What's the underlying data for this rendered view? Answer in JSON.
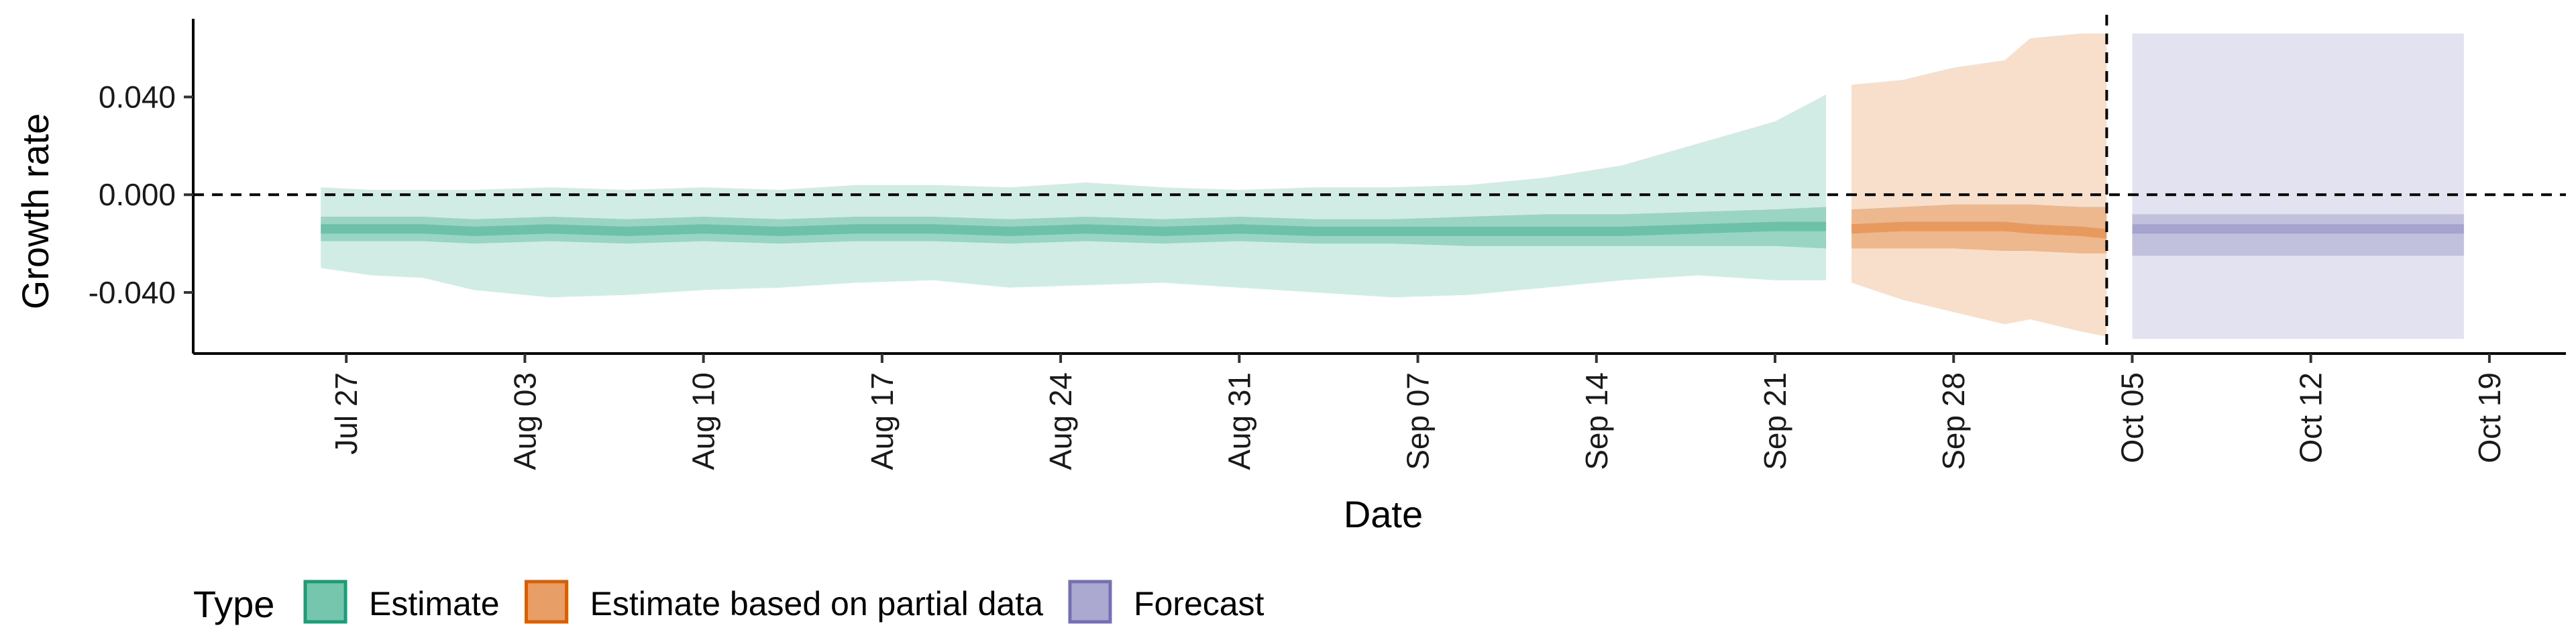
{
  "chart_data": {
    "type": "area",
    "title": "",
    "xlabel": "Date",
    "ylabel": "Growth rate",
    "x_type": "date",
    "xlim": [
      "2020-07-21",
      "2020-10-22"
    ],
    "ylim": [
      -0.065,
      0.072
    ],
    "y_ticks": [
      {
        "value": 0.04,
        "label": "0.040"
      },
      {
        "value": 0.0,
        "label": "0.000"
      },
      {
        "value": -0.04,
        "label": "-0.040"
      }
    ],
    "x_ticks": [
      {
        "date": "2020-07-27",
        "label": "Jul 27"
      },
      {
        "date": "2020-08-03",
        "label": "Aug 03"
      },
      {
        "date": "2020-08-10",
        "label": "Aug 10"
      },
      {
        "date": "2020-08-17",
        "label": "Aug 17"
      },
      {
        "date": "2020-08-24",
        "label": "Aug 24"
      },
      {
        "date": "2020-08-31",
        "label": "Aug 31"
      },
      {
        "date": "2020-09-07",
        "label": "Sep 07"
      },
      {
        "date": "2020-09-14",
        "label": "Sep 14"
      },
      {
        "date": "2020-09-21",
        "label": "Sep 21"
      },
      {
        "date": "2020-09-28",
        "label": "Sep 28"
      },
      {
        "date": "2020-10-05",
        "label": "Oct 05"
      },
      {
        "date": "2020-10-12",
        "label": "Oct 12"
      },
      {
        "date": "2020-10-19",
        "label": "Oct 19"
      }
    ],
    "reference_lines": [
      {
        "axis": "y",
        "value": 0,
        "style": "dashed"
      },
      {
        "axis": "x",
        "value": "2020-10-04",
        "style": "dashed"
      }
    ],
    "grid": false,
    "legend": {
      "title": "Type",
      "position": "bottom-left",
      "entries": [
        {
          "label": "Estimate",
          "color": "#1b9e77"
        },
        {
          "label": "Estimate based on partial data",
          "color": "#d95f02"
        },
        {
          "label": "Forecast",
          "color": "#7570b3"
        }
      ]
    },
    "series": [
      {
        "name": "Estimate",
        "color": "#1b9e77",
        "points": [
          {
            "x": "2020-07-26",
            "median": -0.014,
            "lower90": -0.03,
            "upper90": 0.003,
            "lower50": -0.019,
            "upper50": -0.009
          },
          {
            "x": "2020-07-28",
            "median": -0.014,
            "lower90": -0.033,
            "upper90": 0.002,
            "lower50": -0.019,
            "upper50": -0.009
          },
          {
            "x": "2020-07-30",
            "median": -0.014,
            "lower90": -0.034,
            "upper90": 0.002,
            "lower50": -0.019,
            "upper50": -0.009
          },
          {
            "x": "2020-08-01",
            "median": -0.015,
            "lower90": -0.039,
            "upper90": 0.002,
            "lower50": -0.02,
            "upper50": -0.01
          },
          {
            "x": "2020-08-04",
            "median": -0.014,
            "lower90": -0.042,
            "upper90": 0.003,
            "lower50": -0.019,
            "upper50": -0.009
          },
          {
            "x": "2020-08-07",
            "median": -0.015,
            "lower90": -0.041,
            "upper90": 0.002,
            "lower50": -0.02,
            "upper50": -0.01
          },
          {
            "x": "2020-08-10",
            "median": -0.014,
            "lower90": -0.039,
            "upper90": 0.003,
            "lower50": -0.019,
            "upper50": -0.009
          },
          {
            "x": "2020-08-13",
            "median": -0.015,
            "lower90": -0.038,
            "upper90": 0.002,
            "lower50": -0.02,
            "upper50": -0.01
          },
          {
            "x": "2020-08-16",
            "median": -0.014,
            "lower90": -0.036,
            "upper90": 0.004,
            "lower50": -0.019,
            "upper50": -0.009
          },
          {
            "x": "2020-08-19",
            "median": -0.014,
            "lower90": -0.035,
            "upper90": 0.004,
            "lower50": -0.019,
            "upper50": -0.009
          },
          {
            "x": "2020-08-22",
            "median": -0.015,
            "lower90": -0.038,
            "upper90": 0.003,
            "lower50": -0.02,
            "upper50": -0.01
          },
          {
            "x": "2020-08-25",
            "median": -0.014,
            "lower90": -0.037,
            "upper90": 0.005,
            "lower50": -0.019,
            "upper50": -0.009
          },
          {
            "x": "2020-08-28",
            "median": -0.015,
            "lower90": -0.036,
            "upper90": 0.003,
            "lower50": -0.02,
            "upper50": -0.01
          },
          {
            "x": "2020-08-31",
            "median": -0.014,
            "lower90": -0.038,
            "upper90": 0.002,
            "lower50": -0.019,
            "upper50": -0.009
          },
          {
            "x": "2020-09-03",
            "median": -0.015,
            "lower90": -0.04,
            "upper90": 0.003,
            "lower50": -0.02,
            "upper50": -0.01
          },
          {
            "x": "2020-09-06",
            "median": -0.015,
            "lower90": -0.042,
            "upper90": 0.003,
            "lower50": -0.02,
            "upper50": -0.01
          },
          {
            "x": "2020-09-09",
            "median": -0.015,
            "lower90": -0.041,
            "upper90": 0.004,
            "lower50": -0.021,
            "upper50": -0.009
          },
          {
            "x": "2020-09-12",
            "median": -0.015,
            "lower90": -0.038,
            "upper90": 0.007,
            "lower50": -0.021,
            "upper50": -0.008
          },
          {
            "x": "2020-09-15",
            "median": -0.015,
            "lower90": -0.035,
            "upper90": 0.012,
            "lower50": -0.021,
            "upper50": -0.008
          },
          {
            "x": "2020-09-18",
            "median": -0.014,
            "lower90": -0.033,
            "upper90": 0.021,
            "lower50": -0.021,
            "upper50": -0.007
          },
          {
            "x": "2020-09-21",
            "median": -0.013,
            "lower90": -0.035,
            "upper90": 0.03,
            "lower50": -0.021,
            "upper50": -0.006
          },
          {
            "x": "2020-09-23",
            "median": -0.013,
            "lower90": -0.035,
            "upper90": 0.041,
            "lower50": -0.022,
            "upper50": -0.005
          }
        ]
      },
      {
        "name": "Estimate based on partial data",
        "color": "#d95f02",
        "points": [
          {
            "x": "2020-09-24",
            "median": -0.014,
            "lower90": -0.036,
            "upper90": 0.045,
            "lower50": -0.022,
            "upper50": -0.006
          },
          {
            "x": "2020-09-26",
            "median": -0.013,
            "lower90": -0.043,
            "upper90": 0.047,
            "lower50": -0.022,
            "upper50": -0.005
          },
          {
            "x": "2020-09-28",
            "median": -0.013,
            "lower90": -0.048,
            "upper90": 0.052,
            "lower50": -0.022,
            "upper50": -0.004
          },
          {
            "x": "2020-09-30",
            "median": -0.013,
            "lower90": -0.053,
            "upper90": 0.055,
            "lower50": -0.023,
            "upper50": -0.004
          },
          {
            "x": "2020-10-01",
            "median": -0.014,
            "lower90": -0.051,
            "upper90": 0.064,
            "lower50": -0.023,
            "upper50": -0.004
          },
          {
            "x": "2020-10-03",
            "median": -0.015,
            "lower90": -0.056,
            "upper90": 0.066,
            "lower50": -0.024,
            "upper50": -0.005
          },
          {
            "x": "2020-10-04",
            "median": -0.016,
            "lower90": -0.058,
            "upper90": 0.066,
            "lower50": -0.024,
            "upper50": -0.005
          }
        ]
      },
      {
        "name": "Forecast",
        "color": "#7570b3",
        "points": [
          {
            "x": "2020-10-05",
            "median": -0.014,
            "lower90": -0.059,
            "upper90": 0.066,
            "lower50": -0.025,
            "upper50": -0.008
          },
          {
            "x": "2020-10-18",
            "median": -0.014,
            "lower90": -0.059,
            "upper90": 0.066,
            "lower50": -0.025,
            "upper50": -0.008
          }
        ]
      }
    ]
  }
}
